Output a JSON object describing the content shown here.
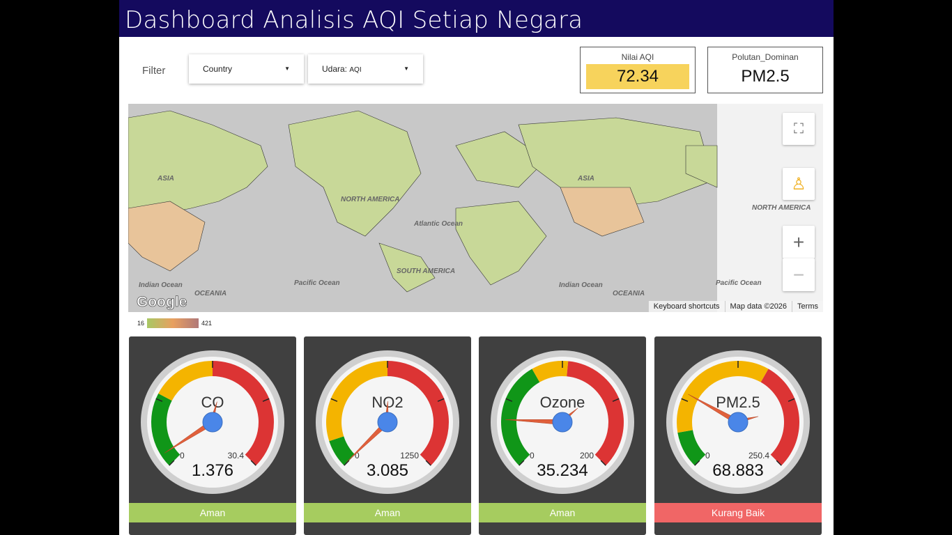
{
  "header": {
    "title": "Dashboard Analisis AQI Setiap Negara"
  },
  "filter": {
    "label": "Filter",
    "country": "Country",
    "udara_prefix": "Udara:",
    "udara_value": "AQI"
  },
  "kpi": [
    {
      "title": "Nilai AQI",
      "value": "72.34",
      "color": "#f7d35c"
    },
    {
      "title": "Polutan_Dominan",
      "value": "PM2.5"
    }
  ],
  "map": {
    "labels": [
      "ASIA",
      "NORTH AMERICA",
      "Atlantic Ocean",
      "SOUTH AMERICA",
      "Indian Ocean",
      "OCEANIA",
      "Pacific Ocean",
      "ASIA",
      "OCEANIA",
      "NORTH AMERICA",
      "Indian Ocean",
      "Pacific Ocean"
    ],
    "attribution": [
      "Keyboard shortcuts",
      "Map data ©2026",
      "Terms"
    ],
    "logo": "Google",
    "controls": [
      "fullscreen-icon",
      "pegman-icon",
      "zoom-in-icon",
      "zoom-out-icon"
    ]
  },
  "legend": {
    "min": "16",
    "max": "421"
  },
  "gauges": [
    {
      "label": "CO",
      "value": 1.376,
      "display": "1.376",
      "min": "0",
      "max": "30.4",
      "maxv": 30.4,
      "bands": [
        0.27,
        0.5
      ],
      "status": "Aman",
      "status_color": "#a6cc5f"
    },
    {
      "label": "NO2",
      "value": 3.085,
      "display": "3.085",
      "min": "0",
      "max": "1250",
      "maxv": 1250,
      "bands": [
        0.1,
        0.5
      ],
      "status": "Aman",
      "status_color": "#a6cc5f"
    },
    {
      "label": "Ozone",
      "value": 35.234,
      "display": "35.234",
      "min": "0",
      "max": "200",
      "maxv": 200,
      "bands": [
        0.39,
        0.52
      ],
      "status": "Aman",
      "status_color": "#a6cc5f"
    },
    {
      "label": "PM2.5",
      "value": 68.883,
      "display": "68.883",
      "min": "0",
      "max": "250.4",
      "maxv": 250.4,
      "bands": [
        0.13,
        0.61
      ],
      "status": "Kurang Baik",
      "status_color": "#f06666"
    }
  ]
}
